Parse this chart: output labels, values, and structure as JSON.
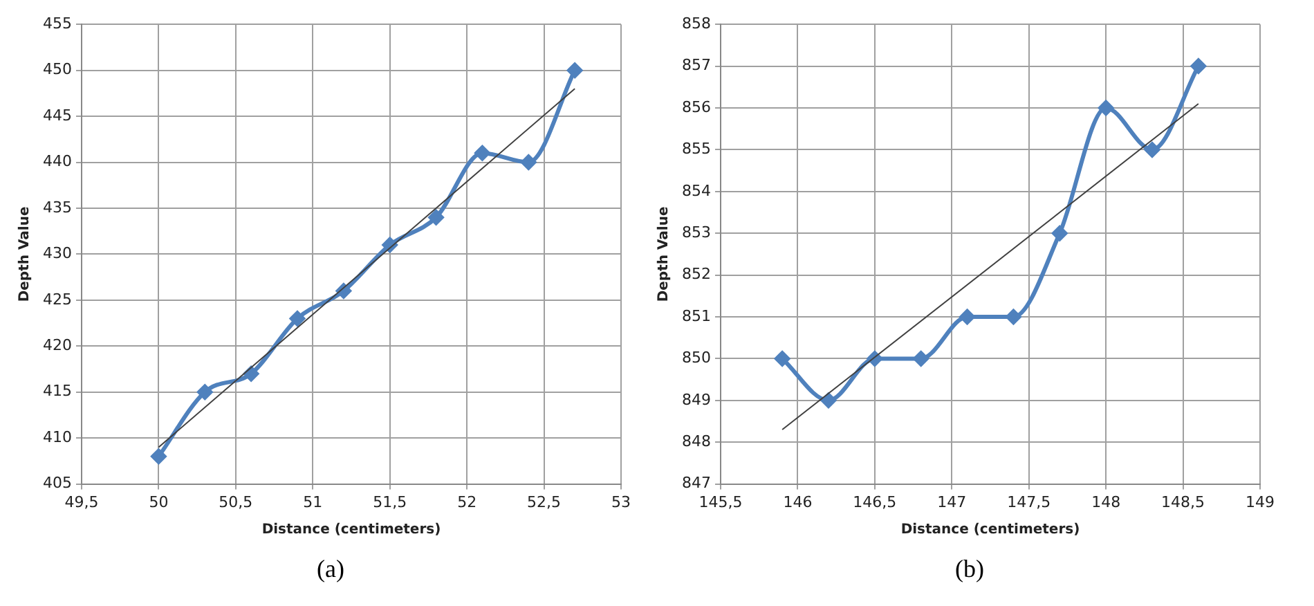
{
  "chart_data": [
    {
      "type": "line",
      "xlabel": "Distance (centimeters)",
      "ylabel": "Depth Value",
      "annotations": [
        "(a)"
      ],
      "xlim": [
        49.5,
        53
      ],
      "xticks": [
        {
          "value": 49.5,
          "label": "49,5"
        },
        50,
        {
          "value": 50.5,
          "label": "50,5"
        },
        51,
        {
          "value": 51.5,
          "label": "51,5"
        },
        52,
        {
          "value": 52.5,
          "label": "52,5"
        },
        53
      ],
      "ylim": [
        405,
        455
      ],
      "yticks": [
        405,
        410,
        415,
        420,
        425,
        430,
        435,
        440,
        445,
        450,
        455
      ],
      "grid": true,
      "legend": false,
      "marker": "diamond",
      "line_style": "solid",
      "series": [
        {
          "color": "#4f81bd",
          "x": [
            50,
            50.3,
            50.6,
            50.9,
            51.2,
            51.5,
            51.8,
            52.1,
            52.4,
            52.7
          ],
          "values": [
            408,
            415,
            417,
            423,
            426,
            431,
            434,
            441,
            440,
            450
          ]
        },
        {
          "type": "line",
          "color": "#404040",
          "marker": "none",
          "x": [
            50,
            52.7
          ],
          "values": [
            409,
            448
          ]
        }
      ]
    },
    {
      "type": "line",
      "xlabel": "Distance (centimeters)",
      "ylabel": "Depth Value",
      "annotations": [
        "(b)"
      ],
      "xlim": [
        145.5,
        149
      ],
      "xticks": [
        {
          "value": 145.5,
          "label": "145,5"
        },
        146,
        {
          "value": 146.5,
          "label": "146,5"
        },
        147,
        {
          "value": 147.5,
          "label": "147,5"
        },
        148,
        {
          "value": 148.5,
          "label": "148,5"
        },
        149
      ],
      "ylim": [
        847,
        858
      ],
      "yticks": [
        847,
        848,
        849,
        850,
        851,
        852,
        853,
        854,
        855,
        856,
        857,
        858
      ],
      "grid": true,
      "legend": false,
      "marker": "diamond",
      "line_style": "solid",
      "series": [
        {
          "color": "#4f81bd",
          "x": [
            145.9,
            146.2,
            146.5,
            146.8,
            147.1,
            147.4,
            147.7,
            148,
            148.3,
            148.6
          ],
          "values": [
            850,
            849,
            850,
            850,
            851,
            851,
            853,
            856,
            855,
            857
          ]
        },
        {
          "type": "line",
          "color": "#404040",
          "marker": "none",
          "x": [
            145.9,
            148.6
          ],
          "values": [
            848.3,
            856.1
          ]
        }
      ]
    }
  ]
}
